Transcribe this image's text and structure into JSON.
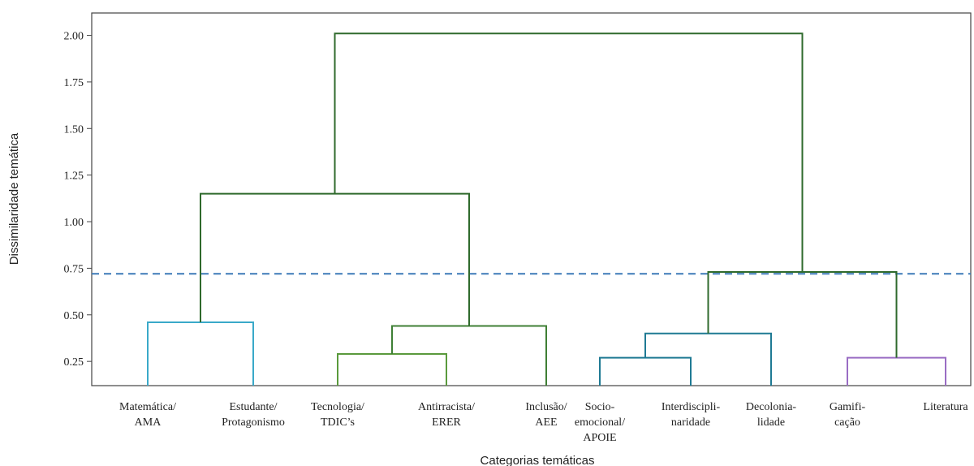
{
  "chart_data": {
    "type": "dendrogram",
    "xlabel": "Categorias temáticas",
    "ylabel": "Dissimilaridade temática",
    "ylim": [
      0.12,
      2.12
    ],
    "yticks": [
      "0.25",
      "0.50",
      "0.75",
      "1.00",
      "1.25",
      "1.50",
      "1.75",
      "2.00"
    ],
    "ytick_values": [
      0.25,
      0.5,
      0.75,
      1.0,
      1.25,
      1.5,
      1.75,
      2.0
    ],
    "threshold": 0.72,
    "threshold_color": "#3d7ab8",
    "leaves": [
      {
        "lines": [
          "Matemática/",
          "AMA"
        ]
      },
      {
        "lines": [
          "Estudante/",
          "Protagonismo"
        ]
      },
      {
        "lines": [
          "Tecnologia/",
          "TDIC’s"
        ]
      },
      {
        "lines": [
          "Antirracista/",
          "ERER"
        ]
      },
      {
        "lines": [
          "Inclusão/",
          "AEE"
        ]
      },
      {
        "lines": [
          "Socio-",
          "emocional/",
          "APOIE"
        ]
      },
      {
        "lines": [
          "Interdiscipli-",
          "naridade"
        ]
      },
      {
        "lines": [
          "Decolonia-",
          "lidade"
        ]
      },
      {
        "lines": [
          "Gamifi-",
          "cação"
        ]
      },
      {
        "lines": [
          "Literatura"
        ]
      }
    ],
    "merges": [
      {
        "left": 0,
        "right": 1,
        "height": 0.46,
        "color": "#3aa9c9"
      },
      {
        "left": 2,
        "right": 3,
        "height": 0.29,
        "color": "#5a9a3c"
      },
      {
        "left": 5,
        "right": 6,
        "height": 0.27,
        "color": "#1f7a94"
      },
      {
        "left": 8,
        "right": 9,
        "height": 0.27,
        "color": "#9a6dc4"
      },
      {
        "left": 11,
        "right": 4,
        "height": 0.44,
        "color": "#3f7f35"
      },
      {
        "left": 12,
        "right": 7,
        "height": 0.4,
        "color": "#1f7a94"
      },
      {
        "left": 15,
        "right": 13,
        "height": 0.73,
        "color": "#2f6a2c"
      },
      {
        "left": 10,
        "right": 14,
        "height": 1.15,
        "color": "#2f6a2c"
      },
      {
        "left": 17,
        "right": 16,
        "height": 2.01,
        "color": "#2f6a2c"
      }
    ]
  }
}
